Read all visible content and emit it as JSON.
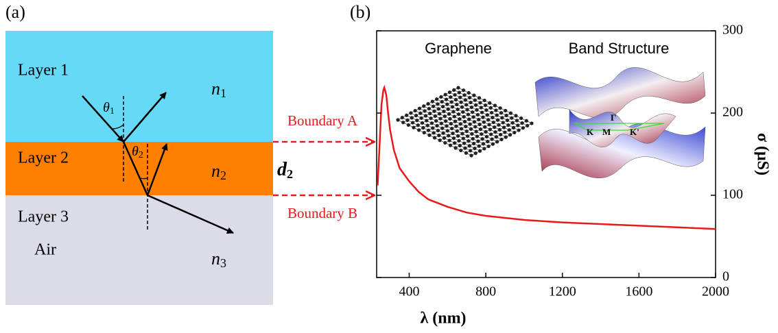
{
  "panel_a": {
    "label": "(a)",
    "layers": [
      {
        "name": "Layer 1",
        "index": {
          "symbol": "n",
          "sub": "1"
        }
      },
      {
        "name": "Layer 2",
        "index": {
          "symbol": "n",
          "sub": "2"
        }
      },
      {
        "name": "Layer 3",
        "note": "Air",
        "index": {
          "symbol": "n",
          "sub": "3"
        }
      }
    ],
    "angles": [
      {
        "symbol": "θ",
        "sub": "1"
      },
      {
        "symbol": "θ",
        "sub": "2"
      }
    ],
    "thickness": {
      "symbol": "d",
      "sub": "2"
    },
    "boundaries": [
      "Boundary A",
      "Boundary B"
    ]
  },
  "chart_data": {
    "type": "line",
    "panel_label": "(b)",
    "x_label": "λ (nm)",
    "y_label": "σ (μS)",
    "x": [
      235,
      245,
      255,
      265,
      270,
      280,
      290,
      300,
      320,
      350,
      400,
      450,
      500,
      600,
      700,
      800,
      1000,
      1200,
      1400,
      1600,
      1800,
      2000
    ],
    "values": [
      112,
      160,
      210,
      228,
      231,
      222,
      200,
      180,
      155,
      133,
      117,
      104,
      95,
      86,
      79,
      75,
      70,
      67,
      65,
      63,
      61,
      59
    ],
    "color": "#e8191a",
    "xlim": [
      230,
      2000
    ],
    "xticks": [
      400,
      800,
      1200,
      1600,
      2000
    ],
    "ylim": [
      0,
      300
    ],
    "yticks": [
      0,
      100,
      200,
      300
    ],
    "insets": {
      "graphene": "Graphene",
      "band_structure": "Band Structure",
      "points": [
        "K",
        "M",
        "Γ",
        "K'"
      ]
    }
  }
}
